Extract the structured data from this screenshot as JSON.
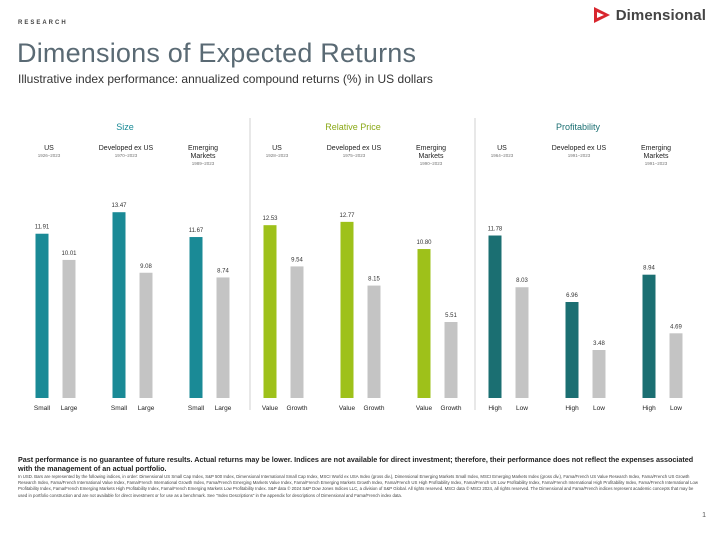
{
  "header": {
    "eyebrow": "RESEARCH",
    "title": "Dimensions of Expected Returns",
    "subtitle": "Illustrative index performance: annualized compound returns (%) in US dollars",
    "logo_text": "Dimensional"
  },
  "colors": {
    "teal": "#1a8a96",
    "green": "#9ec11a",
    "dark_teal": "#1b6f72",
    "gray": "#c4c4c4",
    "logo_red": "#d8262e"
  },
  "chart_data": {
    "type": "bar",
    "groups": [
      {
        "title": "Size",
        "title_color": "#1a8a96",
        "bar_color": "#1a8a96",
        "panels": [
          {
            "name": "US",
            "period": "1926–2023",
            "categories": [
              "Small",
              "Large"
            ],
            "values": [
              11.91,
              10.01
            ]
          },
          {
            "name": "Developed ex US",
            "period": "1970–2023",
            "categories": [
              "Small",
              "Large"
            ],
            "values": [
              13.47,
              9.08
            ]
          },
          {
            "name": "Emerging Markets",
            "period": "1989–2023",
            "categories": [
              "Small",
              "Large"
            ],
            "values": [
              11.67,
              8.74
            ]
          }
        ]
      },
      {
        "title": "Relative Price",
        "title_color": "#8aa817",
        "bar_color": "#9ec11a",
        "panels": [
          {
            "name": "US",
            "period": "1928–2023",
            "categories": [
              "Value",
              "Growth"
            ],
            "values": [
              12.53,
              9.54
            ]
          },
          {
            "name": "Developed ex US",
            "period": "1975–2023",
            "categories": [
              "Value",
              "Growth"
            ],
            "values": [
              12.77,
              8.15
            ]
          },
          {
            "name": "Emerging Markets",
            "period": "1990–2023",
            "categories": [
              "Value",
              "Growth"
            ],
            "values": [
              10.8,
              5.51
            ]
          }
        ]
      },
      {
        "title": "Profitability",
        "title_color": "#1b6f72",
        "bar_color": "#1b6f72",
        "panels": [
          {
            "name": "US",
            "period": "1964–2023",
            "categories": [
              "High",
              "Low"
            ],
            "values": [
              11.78,
              8.03
            ]
          },
          {
            "name": "Developed ex US",
            "period": "1991–2023",
            "categories": [
              "High",
              "Low"
            ],
            "values": [
              6.96,
              3.48
            ]
          },
          {
            "name": "Emerging Markets",
            "period": "1991–2023",
            "categories": [
              "High",
              "Low"
            ],
            "values": [
              8.94,
              4.69
            ]
          }
        ]
      }
    ],
    "value_labels": [
      "11.91",
      "10.01",
      "13.47",
      "9.08",
      "11.67",
      "8.74",
      "12.53",
      "9.54",
      "12.77",
      "8.15",
      "10.80",
      "5.51",
      "11.78",
      "8.03",
      "6.96",
      "3.48",
      "8.94",
      "4.69"
    ],
    "ylim": [
      0,
      14.5
    ],
    "grid": false,
    "legend": "none"
  },
  "footer": {
    "disclaimer_bold": "Past performance is no guarantee of future results. Actual returns may be lower. Indices are not available for direct investment; therefore, their performance does not reflect the expenses associated with the management of an actual portfolio.",
    "disclaimer_fine": "In USD. Bars are represented by the following indices, in order: Dimensional US Small Cap Index, S&P 500 Index, Dimensional International Small Cap Index, MSCI World ex USA Index (gross div.), Dimensional Emerging Markets Small Index, MSCI Emerging Markets Index (gross div.), Fama/French US Value Research Index, Fama/French US Growth Research Index, Fama/French International Value Index, Fama/French International Growth Index, Fama/French Emerging Markets Value Index, Fama/French Emerging Markets Growth Index, Fama/French US High Profitability Index, Fama/French US Low Profitability Index, Fama/French International High Profitability Index, Fama/French International Low Profitability Index, Fama/French Emerging Markets High Profitability Index, Fama/French Emerging Markets Low Profitability Index. S&P data © 2024 S&P Dow Jones Indices LLC, a division of S&P Global. All rights reserved. MSCI data © MSCI 2024, all rights reserved. The Dimensional and Fama/French indices represent academic concepts that may be used in portfolio construction and are not available for direct investment or for use as a benchmark. See \"Index Descriptions\" in the appendix for descriptions of Dimensional and Fama/French index data.",
    "page_number": "1"
  }
}
